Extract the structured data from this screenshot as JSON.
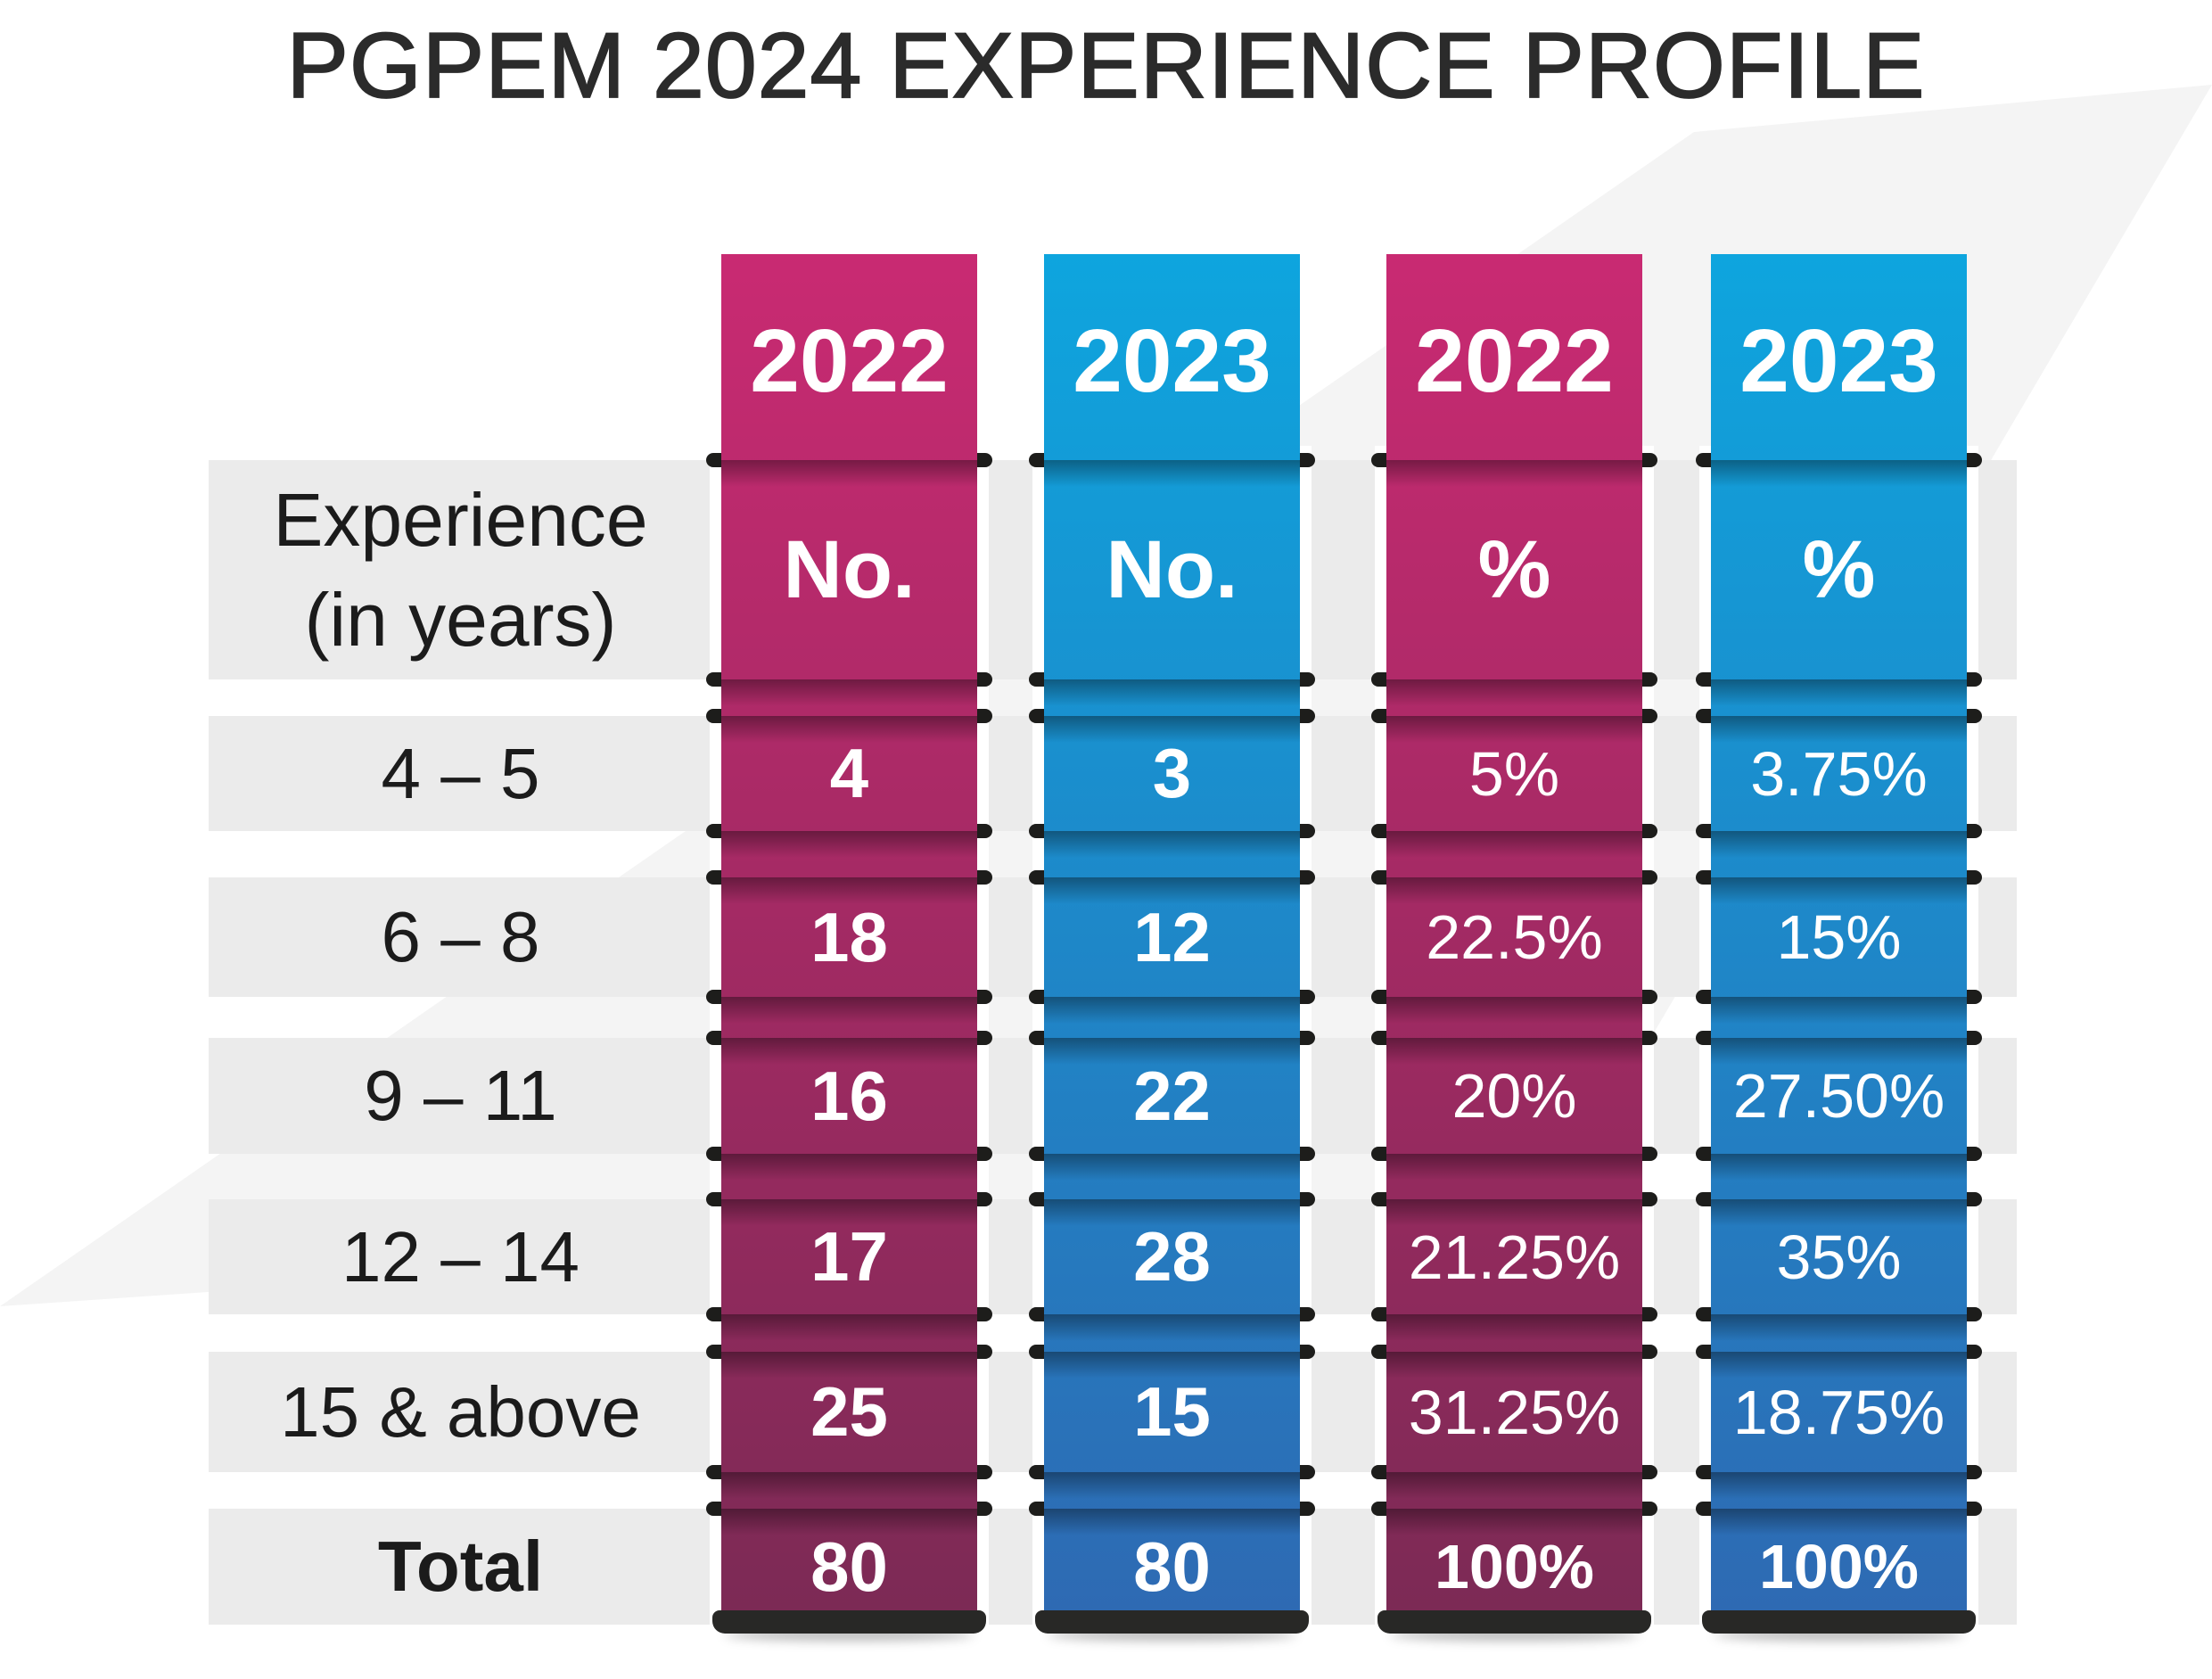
{
  "title": "PGPEM 2024 EXPERIENCE PROFILE",
  "table": {
    "row_header": {
      "line1": "Experience",
      "line2": "(in years)"
    },
    "columns": [
      {
        "year": "2022",
        "metric": "No.",
        "scheme": "magenta"
      },
      {
        "year": "2023",
        "metric": "No.",
        "scheme": "blue"
      },
      {
        "year": "2022",
        "metric": "%",
        "scheme": "magenta"
      },
      {
        "year": "2023",
        "metric": "%",
        "scheme": "blue"
      }
    ],
    "rows": [
      {
        "label": "4 – 5",
        "values": [
          "4",
          "3",
          "5%",
          "3.75%"
        ],
        "emphasis": false
      },
      {
        "label": "6 – 8",
        "values": [
          "18",
          "12",
          "22.5%",
          "15%"
        ],
        "emphasis": false
      },
      {
        "label": "9 – 11",
        "values": [
          "16",
          "22",
          "20%",
          "27.50%"
        ],
        "emphasis": false
      },
      {
        "label": "12 – 14",
        "values": [
          "17",
          "28",
          "21.25%",
          "35%"
        ],
        "emphasis": false
      },
      {
        "label": "15 & above",
        "values": [
          "25",
          "15",
          "31.25%",
          "18.75%"
        ],
        "emphasis": false
      },
      {
        "label": "Total",
        "values": [
          "80",
          "80",
          "100%",
          "100%"
        ],
        "emphasis": true
      }
    ]
  },
  "colors": {
    "magenta_top": "#c92a72",
    "magenta_bottom": "#7c2a55",
    "blue_top": "#0ea5de",
    "blue_bottom": "#2e6ab3",
    "strip": "#ebebeb",
    "background_band": "#f4f4f4",
    "clip": "#1d1d1b",
    "foot": "#282826",
    "title_text": "#2b2b2b",
    "label_text": "#1b1b1b",
    "cell_text": "#ffffff"
  },
  "chart_data": {
    "type": "table",
    "title": "PGPEM 2024 EXPERIENCE PROFILE",
    "columns": [
      "Experience (in years)",
      "2022 No.",
      "2023 No.",
      "2022 %",
      "2023 %"
    ],
    "rows": [
      [
        "4 – 5",
        "4",
        "3",
        "5%",
        "3.75%"
      ],
      [
        "6 – 8",
        "18",
        "12",
        "22.5%",
        "15%"
      ],
      [
        "9 – 11",
        "16",
        "22",
        "20%",
        "27.50%"
      ],
      [
        "12 – 14",
        "17",
        "28",
        "21.25%",
        "35%"
      ],
      [
        "15 & above",
        "25",
        "15",
        "31.25%",
        "18.75%"
      ],
      [
        "Total",
        "80",
        "80",
        "100%",
        "100%"
      ]
    ],
    "legend_position": "none",
    "grid": false
  }
}
